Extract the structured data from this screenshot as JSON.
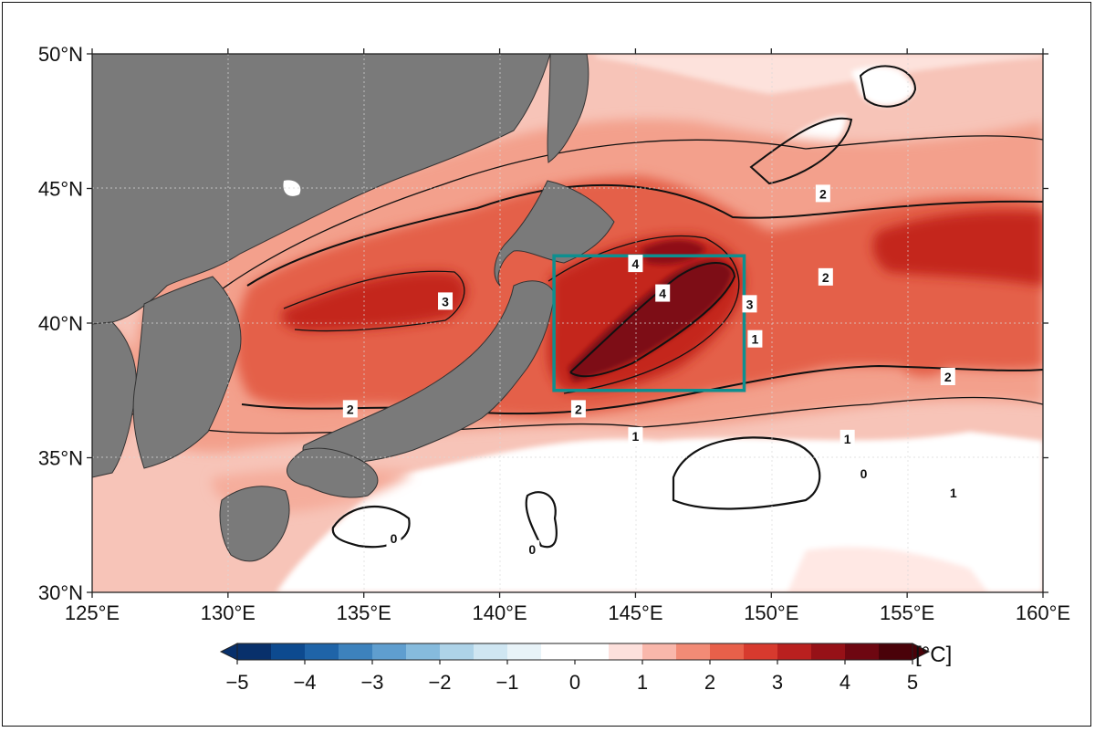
{
  "map": {
    "lat_ticks": [
      {
        "value": 50,
        "label": "50°N"
      },
      {
        "value": 45,
        "label": "45°N"
      },
      {
        "value": 40,
        "label": "40°N"
      },
      {
        "value": 35,
        "label": "35°N"
      },
      {
        "value": 30,
        "label": "30°N"
      }
    ],
    "lon_ticks": [
      {
        "value": 125,
        "label": "125°E"
      },
      {
        "value": 130,
        "label": "130°E"
      },
      {
        "value": 135,
        "label": "135°E"
      },
      {
        "value": 140,
        "label": "140°E"
      },
      {
        "value": 145,
        "label": "145°E"
      },
      {
        "value": 150,
        "label": "150°E"
      },
      {
        "value": 155,
        "label": "155°E"
      },
      {
        "value": 160,
        "label": "160°E"
      }
    ],
    "extent": {
      "lon": [
        125,
        160
      ],
      "lat": [
        30,
        50
      ]
    },
    "highlight_box": {
      "lon": [
        142,
        149
      ],
      "lat": [
        37.5,
        42.5
      ],
      "color": "#0e8f8f"
    },
    "contour_labels": [
      {
        "text": "4",
        "lon": 145.0,
        "lat": 42.2
      },
      {
        "text": "4",
        "lon": 146.0,
        "lat": 41.1
      },
      {
        "text": "3",
        "lon": 138.0,
        "lat": 40.8
      },
      {
        "text": "3",
        "lon": 149.2,
        "lat": 40.7
      },
      {
        "text": "2",
        "lon": 151.9,
        "lat": 44.8
      },
      {
        "text": "2",
        "lon": 152.0,
        "lat": 41.7
      },
      {
        "text": "2",
        "lon": 134.5,
        "lat": 36.8
      },
      {
        "text": "2",
        "lon": 142.9,
        "lat": 36.8
      },
      {
        "text": "2",
        "lon": 156.5,
        "lat": 38.0
      },
      {
        "text": "1",
        "lon": 149.4,
        "lat": 39.4
      },
      {
        "text": "1",
        "lon": 145.0,
        "lat": 35.8
      },
      {
        "text": "1",
        "lon": 152.8,
        "lat": 35.7
      },
      {
        "text": "1",
        "lon": 156.7,
        "lat": 33.7
      },
      {
        "text": "0",
        "lon": 153.4,
        "lat": 34.4
      },
      {
        "text": "0",
        "lon": 136.1,
        "lat": 32.0
      },
      {
        "text": "0",
        "lon": 141.2,
        "lat": 31.6
      }
    ]
  },
  "colorbar": {
    "unit": "[°C]",
    "min": -5,
    "max": 5,
    "labels": [
      "−5",
      "−4",
      "−3",
      "−2",
      "−1",
      "0",
      "1",
      "2",
      "3",
      "4",
      "5"
    ],
    "label_values": [
      -5,
      -4,
      -3,
      -2,
      -1,
      0,
      1,
      2,
      3,
      4,
      5
    ],
    "colors": [
      "#08306b",
      "#0d4a8f",
      "#1f64a8",
      "#3d82bd",
      "#5f9ecf",
      "#86bbdd",
      "#aed3e8",
      "#cfe6f2",
      "#e8f3f8",
      "#ffffff",
      "#ffffff",
      "#fde0dc",
      "#f9b7ab",
      "#f28b76",
      "#e8604a",
      "#d73a2e",
      "#b9201f",
      "#961117",
      "#6e0711",
      "#4a0209"
    ]
  }
}
